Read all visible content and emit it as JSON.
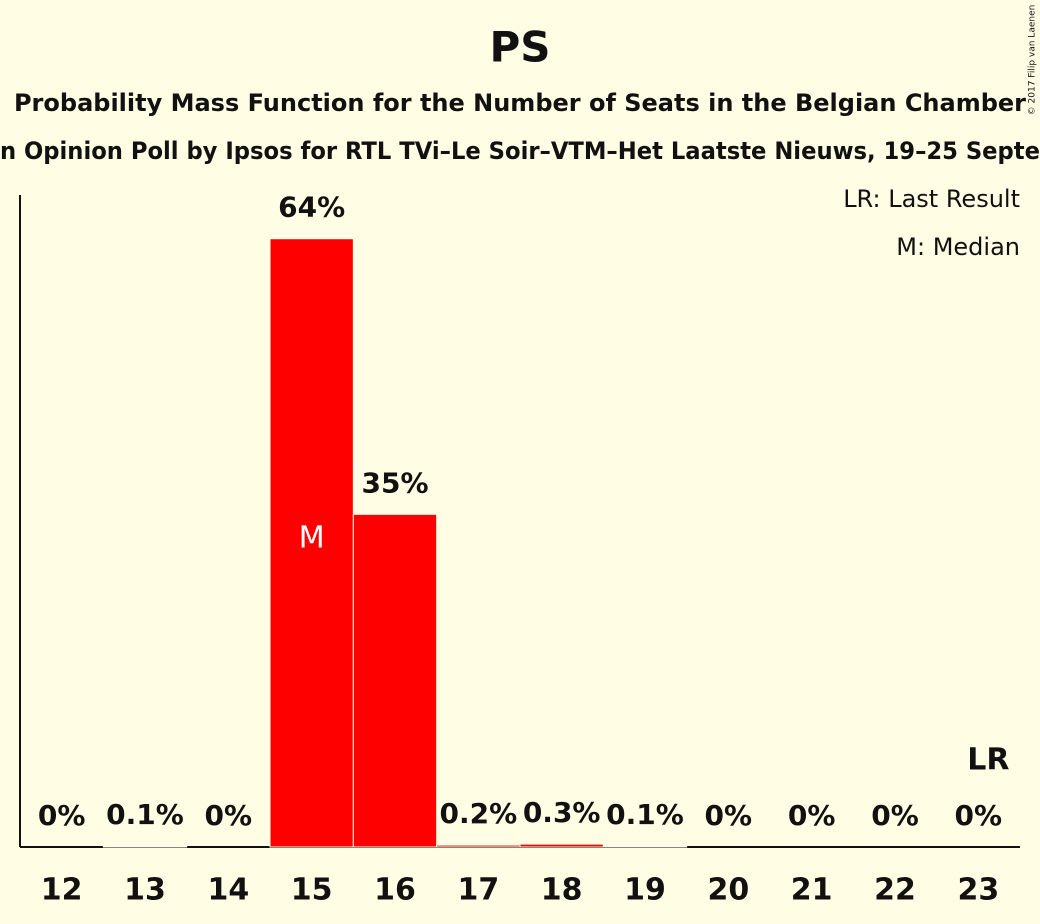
{
  "chart_data": {
    "type": "bar",
    "title": "PS",
    "subtitle": "Probability Mass Function for the Number of Seats in the Belgian Chamber",
    "caption": "n Opinion Poll by Ipsos for RTL TVi–Le Soir–VTM–Het Laatste Nieuws, 19–25 Septe",
    "credit": "© 2017 Filip van Laenen",
    "legend": [
      "LR: Last Result",
      "M: Median"
    ],
    "categories": [
      "12",
      "13",
      "14",
      "15",
      "16",
      "17",
      "18",
      "19",
      "20",
      "21",
      "22",
      "23"
    ],
    "values": [
      0,
      0.1,
      0,
      64,
      35,
      0.2,
      0.3,
      0.1,
      0,
      0,
      0,
      0
    ],
    "value_labels": [
      "0%",
      "0.1%",
      "0%",
      "64%",
      "35%",
      "0.2%",
      "0.3%",
      "0.1%",
      "0%",
      "0%",
      "0%",
      "0%"
    ],
    "color": "#ff0000",
    "ylim": [
      0,
      68.6
    ],
    "annotations": [
      {
        "text": "M",
        "category": "15"
      },
      {
        "text": "LR",
        "category": "23"
      }
    ]
  }
}
